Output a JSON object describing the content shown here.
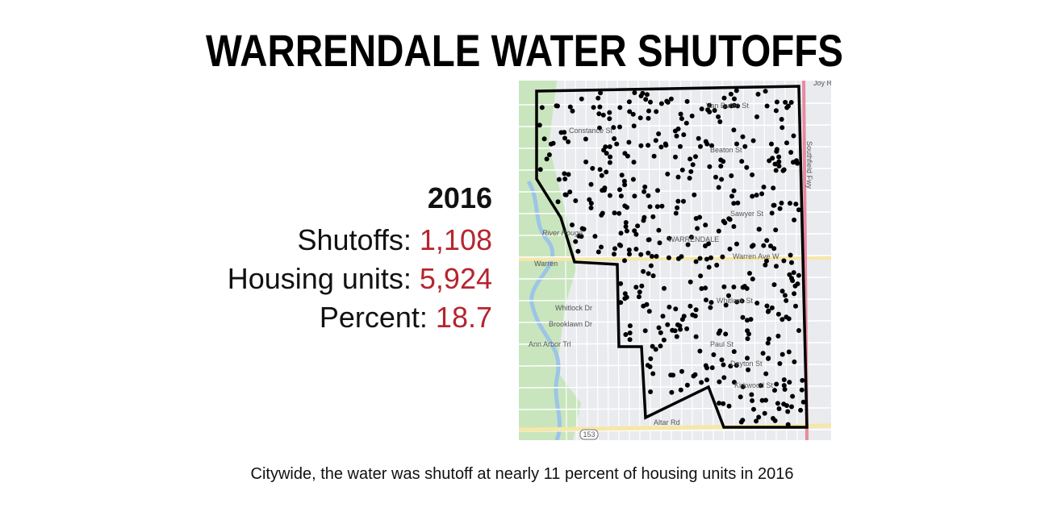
{
  "header": {
    "title": "WARRENDALE WATER SHUTOFFS"
  },
  "stats": {
    "year": "2016",
    "items": [
      {
        "label": "Shutoffs: ",
        "value": "1,108"
      },
      {
        "label": "Housing units: ",
        "value": "5,924"
      },
      {
        "label": "Percent: ",
        "value": "18.7"
      }
    ]
  },
  "map": {
    "labels": [
      "Joy Rd",
      "Van Buren St",
      "Constance St",
      "Beaton St",
      "Sawyer St",
      "WARRENDALE",
      "Warren",
      "Warren Ave W",
      "River Rouge",
      "Whitlock Dr",
      "Brooklawn Dr",
      "Ann Arbor Trl",
      "Whitlock St",
      "Paul St",
      "Dayton St",
      "Kirkwood St",
      "Altar Rd",
      "Southfield Fwy",
      "153"
    ]
  },
  "caption": "Citywide, the water was shutoff at nearly 11 percent of housing units in 2016"
}
